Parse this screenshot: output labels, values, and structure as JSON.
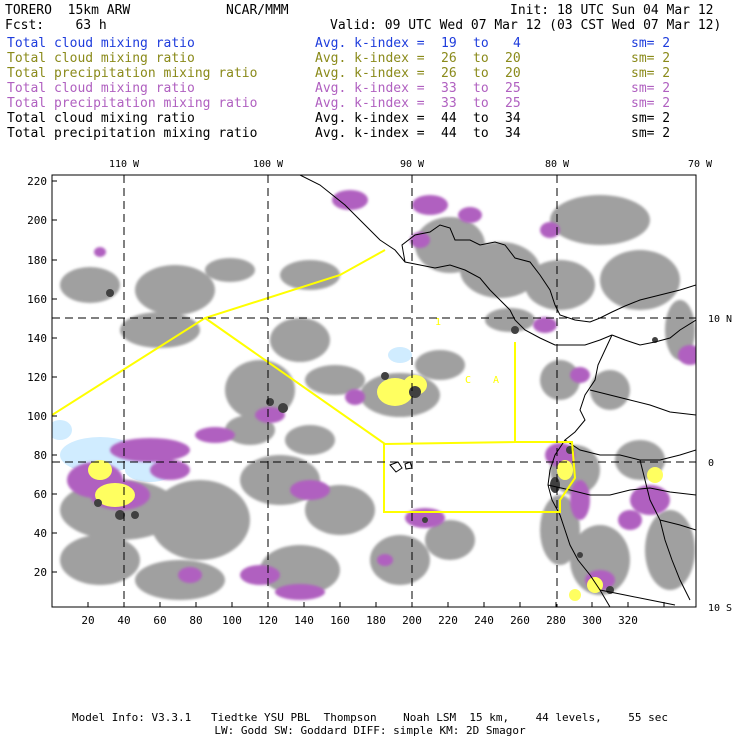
{
  "header": {
    "model": "TORERO  15km ARW",
    "org": "NCAR/MMM",
    "init": "Init: 18 UTC Sun 04 Mar 12",
    "fcst": "Fcst:    63 h",
    "valid": "Valid: 09 UTC Wed 07 Mar 12 (03 CST Wed 07 Mar 12)"
  },
  "legend": [
    {
      "field": "Total cloud mixing ratio",
      "avg": "Avg. k-index =",
      "k1": "19",
      "to": "to",
      "k2": "4",
      "sm": "sm= 2",
      "color": "#1e3cdc"
    },
    {
      "field": "Total cloud mixing ratio",
      "avg": "Avg. k-index =",
      "k1": "26",
      "to": "to",
      "k2": "20",
      "sm": "sm= 2",
      "color": "#8a8a1a"
    },
    {
      "field": "Total precipitation mixing ratio",
      "avg": "Avg. k-index =",
      "k1": "26",
      "to": "to",
      "k2": "20",
      "sm": "sm= 2",
      "color": "#8a8a1a"
    },
    {
      "field": "Total cloud mixing ratio",
      "avg": "Avg. k-index =",
      "k1": "33",
      "to": "to",
      "k2": "25",
      "sm": "sm= 2",
      "color": "#b060c0"
    },
    {
      "field": "Total precipitation mixing ratio",
      "avg": "Avg. k-index =",
      "k1": "33",
      "to": "to",
      "k2": "25",
      "sm": "sm= 2",
      "color": "#b060c0"
    },
    {
      "field": "Total cloud mixing ratio",
      "avg": "Avg. k-index =",
      "k1": "44",
      "to": "to",
      "k2": "34",
      "sm": "sm= 2",
      "color": "#000000"
    },
    {
      "field": "Total precipitation mixing ratio",
      "avg": "Avg. k-index =",
      "k1": "44",
      "to": "to",
      "k2": "34",
      "sm": "sm= 2",
      "color": "#000000"
    }
  ],
  "map": {
    "lon_labels": [
      "110 W",
      "100 W",
      "90 W",
      "80 W",
      "70 W"
    ],
    "lat_labels": [
      "10 N",
      "0",
      "10 S"
    ],
    "y_ticks": [
      "220",
      "200",
      "180",
      "160",
      "140",
      "120",
      "100",
      "80",
      "60",
      "40",
      "20"
    ],
    "x_ticks": [
      "20",
      "40",
      "60",
      "80",
      "100",
      "120",
      "140",
      "160",
      "180",
      "200",
      "220",
      "240",
      "260",
      "280",
      "300",
      "320"
    ],
    "colors": {
      "cloud_gray": "#a0a0a0",
      "cloud_dark": "#505050",
      "precip_purple": "#b060c0",
      "precip_yellow": "#ffff60",
      "cloud_lightblue": "#d0ecff",
      "domain_line": "#ffff00",
      "coast": "#000000"
    }
  },
  "footer": {
    "line1": "Model Info: V3.3.1   Tiedtke YSU PBL  Thompson    Noah LSM  15 km,    44 levels,    55 sec",
    "line2": "LW: Godd SW: Goddard DIFF: simple KM: 2D Smagor"
  }
}
